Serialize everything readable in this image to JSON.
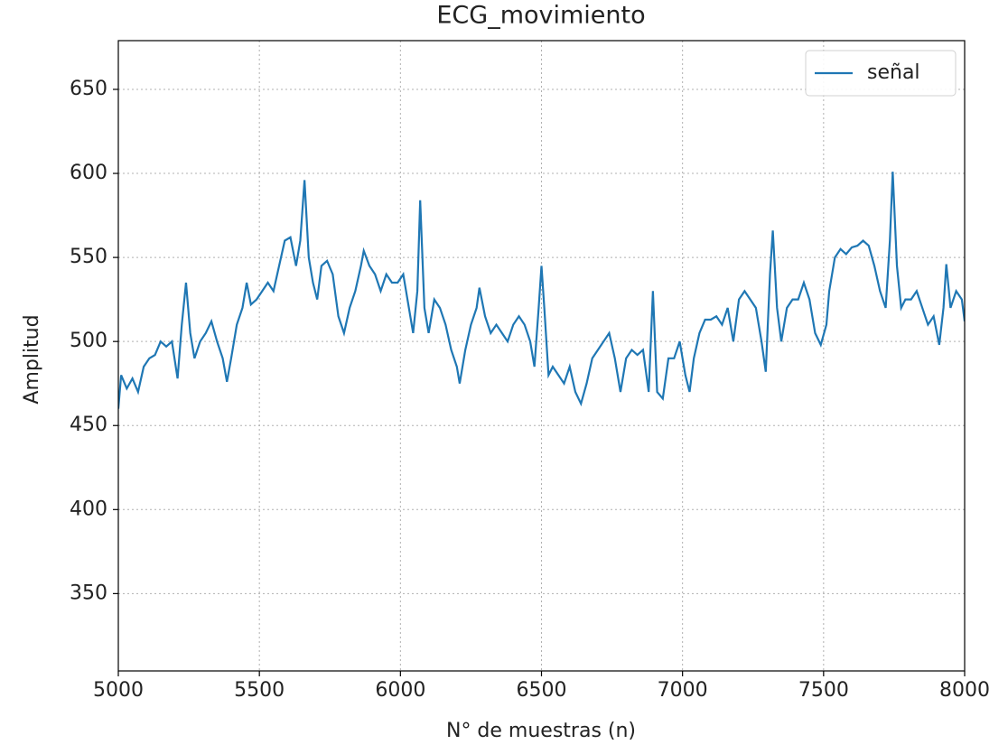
{
  "chart_data": {
    "type": "line",
    "title": "ECG_movimiento",
    "x_label": "N° de muestras (n)",
    "y_label": "Amplitud",
    "x": [
      5000,
      5010,
      5030,
      5050,
      5070,
      5090,
      5110,
      5130,
      5150,
      5170,
      5190,
      5210,
      5225,
      5240,
      5255,
      5270,
      5290,
      5310,
      5330,
      5350,
      5370,
      5385,
      5400,
      5420,
      5440,
      5455,
      5470,
      5490,
      5510,
      5530,
      5550,
      5570,
      5590,
      5610,
      5630,
      5645,
      5660,
      5675,
      5690,
      5705,
      5720,
      5740,
      5760,
      5780,
      5800,
      5820,
      5840,
      5860,
      5870,
      5890,
      5910,
      5930,
      5950,
      5970,
      5990,
      6010,
      6030,
      6045,
      6060,
      6070,
      6085,
      6100,
      6120,
      6140,
      6160,
      6180,
      6200,
      6210,
      6230,
      6250,
      6270,
      6280,
      6300,
      6320,
      6340,
      6360,
      6380,
      6400,
      6420,
      6440,
      6460,
      6475,
      6490,
      6500,
      6510,
      6525,
      6540,
      6560,
      6580,
      6600,
      6620,
      6640,
      6660,
      6680,
      6700,
      6720,
      6740,
      6760,
      6780,
      6800,
      6820,
      6840,
      6860,
      6880,
      6895,
      6910,
      6930,
      6950,
      6970,
      6990,
      7010,
      7025,
      7040,
      7060,
      7080,
      7100,
      7120,
      7140,
      7160,
      7180,
      7200,
      7220,
      7240,
      7260,
      7280,
      7295,
      7310,
      7320,
      7335,
      7350,
      7370,
      7390,
      7410,
      7430,
      7450,
      7470,
      7490,
      7510,
      7520,
      7540,
      7560,
      7580,
      7600,
      7620,
      7640,
      7660,
      7680,
      7700,
      7720,
      7735,
      7745,
      7760,
      7775,
      7790,
      7810,
      7830,
      7850,
      7870,
      7890,
      7910,
      7925,
      7935,
      7950,
      7970,
      7990,
      8000
    ],
    "series": [
      {
        "name": "señal",
        "color": "#1f77b4",
        "values": [
          460,
          480,
          472,
          478,
          470,
          485,
          490,
          492,
          500,
          497,
          500,
          478,
          510,
          535,
          505,
          490,
          500,
          505,
          512,
          500,
          490,
          476,
          490,
          510,
          520,
          535,
          522,
          525,
          530,
          535,
          530,
          545,
          560,
          562,
          545,
          560,
          596,
          550,
          535,
          525,
          545,
          548,
          540,
          515,
          505,
          520,
          530,
          545,
          554,
          545,
          540,
          530,
          540,
          535,
          535,
          540,
          520,
          505,
          530,
          584,
          520,
          505,
          525,
          520,
          510,
          495,
          485,
          475,
          495,
          510,
          520,
          532,
          515,
          505,
          510,
          505,
          500,
          510,
          515,
          510,
          500,
          485,
          520,
          545,
          520,
          480,
          485,
          480,
          475,
          485,
          470,
          463,
          475,
          490,
          495,
          500,
          505,
          490,
          470,
          490,
          495,
          492,
          495,
          470,
          530,
          470,
          466,
          490,
          490,
          500,
          480,
          470,
          490,
          505,
          513,
          513,
          515,
          510,
          520,
          500,
          525,
          530,
          525,
          520,
          500,
          482,
          540,
          566,
          520,
          500,
          520,
          525,
          525,
          535,
          525,
          505,
          498,
          510,
          530,
          550,
          555,
          552,
          556,
          557,
          560,
          557,
          545,
          530,
          520,
          560,
          601,
          545,
          520,
          525,
          525,
          530,
          520,
          510,
          515,
          498,
          520,
          546,
          520,
          530,
          525,
          512
        ]
      }
    ],
    "xlim": [
      5000,
      8000
    ],
    "xticks": [
      5000,
      5500,
      6000,
      6500,
      7000,
      7500,
      8000
    ],
    "ylim": [
      304,
      679
    ],
    "yticks": [
      350,
      400,
      450,
      500,
      550,
      600,
      650
    ],
    "grid": true,
    "legend": "upper right"
  }
}
